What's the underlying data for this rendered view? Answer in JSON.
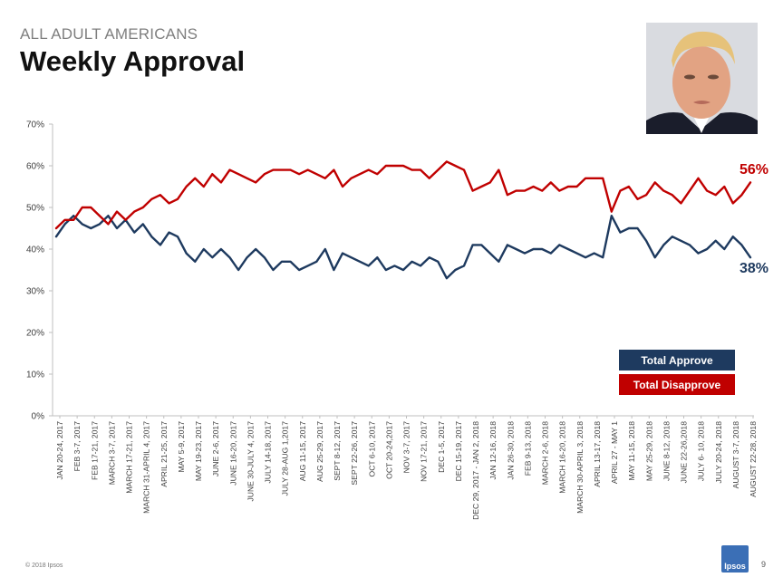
{
  "header": {
    "supertitle": "ALL ADULT AMERICANS",
    "title": "Weekly Approval"
  },
  "footer": {
    "copyright": "© 2018 Ipsos",
    "page_number": "9",
    "logo_text": "Ipsos"
  },
  "colors": {
    "approve": "#1e3a5f",
    "disapprove": "#c00000",
    "axis": "#bfbfbf",
    "text": "#404040"
  },
  "chart_data": {
    "type": "line",
    "title": "Weekly Approval",
    "ylim": [
      0,
      70
    ],
    "y_ticks": [
      "0%",
      "10%",
      "20%",
      "30%",
      "40%",
      "50%",
      "60%",
      "70%"
    ],
    "grid": false,
    "legend_position": "bottom-right",
    "tick_labels": [
      "JAN 20-24, 2017",
      "FEB 3-7, 2017",
      "FEB 17-21, 2017",
      "MARCH 3-7, 2017",
      "MARCH 17-21, 2017",
      "MARCH 31-APRIL 4, 2017",
      "APRIL 21-25, 2017",
      "MAY 5-9, 2017",
      "MAY 19-23, 2017",
      "JUNE 2-6, 2017",
      "JUNE 16-20, 2017",
      "JUNE 30-JULY 4, 2017",
      "JULY 14-18, 2017",
      "JULY 28-AUG 1,2017",
      "AUG 11-15, 2017",
      "AUG 25-29, 2017",
      "SEPT 8-12, 2017",
      "SEPT 22-26, 2017",
      "OCT 6-10, 2017",
      "OCT 20-24,2017",
      "NOV 3-7, 2017",
      "NOV 17-21, 2017",
      "DEC 1-5, 2017",
      "DEC 15-19, 2017",
      "DEC 29, 2017 - JAN 2, 2018",
      "JAN 12-16, 2018",
      "JAN 26-30, 2018",
      "FEB 9-13, 2018",
      "MARCH 2-6, 2018",
      "MARCH 16-20, 2018",
      "MARCH 30-APRIL 3, 2018",
      "APRIL 13-17, 2018",
      "APRIL 27 - MAY 1",
      "MAY 11-15, 2018",
      "MAY 25-29, 2018",
      "JUNE 8-12, 2018",
      "JUNE 22-26,2018",
      "JULY 6- 10, 2018",
      "JULY 20-24, 2018",
      "AUGUST 3-7, 2018",
      "AUGUST 22-28, 2018"
    ],
    "series": [
      {
        "name": "Total Approve",
        "end_label": "38%",
        "values": [
          43,
          46,
          48,
          46,
          45,
          46,
          48,
          45,
          47,
          44,
          46,
          43,
          41,
          44,
          43,
          39,
          37,
          40,
          38,
          40,
          38,
          35,
          38,
          40,
          38,
          35,
          37,
          37,
          35,
          36,
          37,
          40,
          35,
          39,
          38,
          37,
          36,
          38,
          35,
          36,
          35,
          37,
          36,
          38,
          37,
          33,
          35,
          36,
          41,
          41,
          39,
          37,
          41,
          40,
          39,
          40,
          40,
          39,
          41,
          40,
          39,
          38,
          39,
          38,
          48,
          44,
          45,
          45,
          42,
          38,
          41,
          43,
          42,
          41,
          39,
          40,
          42,
          40,
          43,
          41,
          38
        ]
      },
      {
        "name": "Total Disapprove",
        "end_label": "56%",
        "values": [
          45,
          47,
          47,
          50,
          50,
          48,
          46,
          49,
          47,
          49,
          50,
          52,
          53,
          51,
          52,
          55,
          57,
          55,
          58,
          56,
          59,
          58,
          57,
          56,
          58,
          59,
          59,
          59,
          58,
          59,
          58,
          57,
          59,
          55,
          57,
          58,
          59,
          58,
          60,
          60,
          60,
          59,
          59,
          57,
          59,
          61,
          60,
          59,
          54,
          55,
          56,
          59,
          53,
          54,
          54,
          55,
          54,
          56,
          54,
          55,
          55,
          57,
          57,
          57,
          49,
          54,
          55,
          52,
          53,
          56,
          54,
          53,
          51,
          54,
          57,
          54,
          53,
          55,
          51,
          53,
          56
        ]
      }
    ]
  }
}
